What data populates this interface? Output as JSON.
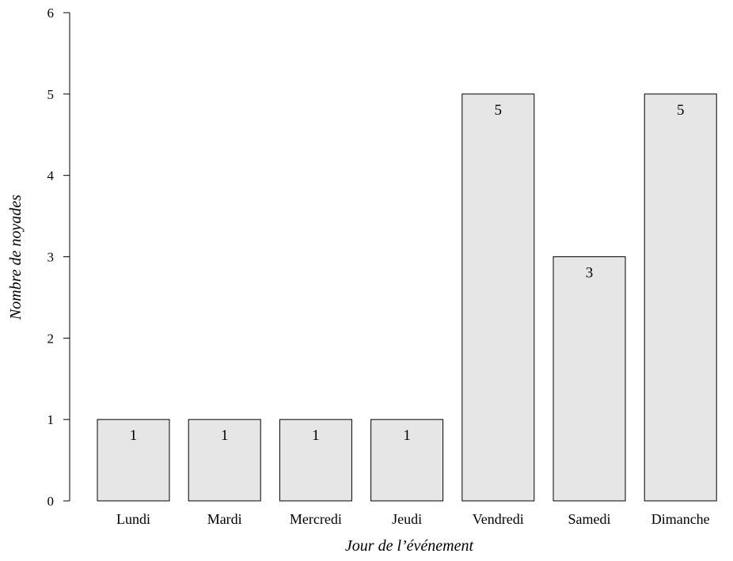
{
  "chart_data": {
    "type": "bar",
    "title": "",
    "xlabel": "Jour de l’événement",
    "ylabel": "Nombre de noyades",
    "categories": [
      "Lundi",
      "Mardi",
      "Mercredi",
      "Jeudi",
      "Vendredi",
      "Samedi",
      "Dimanche"
    ],
    "values": [
      1,
      1,
      1,
      1,
      5,
      3,
      5
    ],
    "data_labels": [
      "1",
      "1",
      "1",
      "1",
      "5",
      "3",
      "5"
    ],
    "ylim": [
      0,
      6
    ],
    "yticks": [
      0,
      1,
      2,
      3,
      4,
      5,
      6
    ],
    "grid": false,
    "legend": "none",
    "bar_color": "#e6e6e6",
    "bar_edge_color": "#000000"
  }
}
